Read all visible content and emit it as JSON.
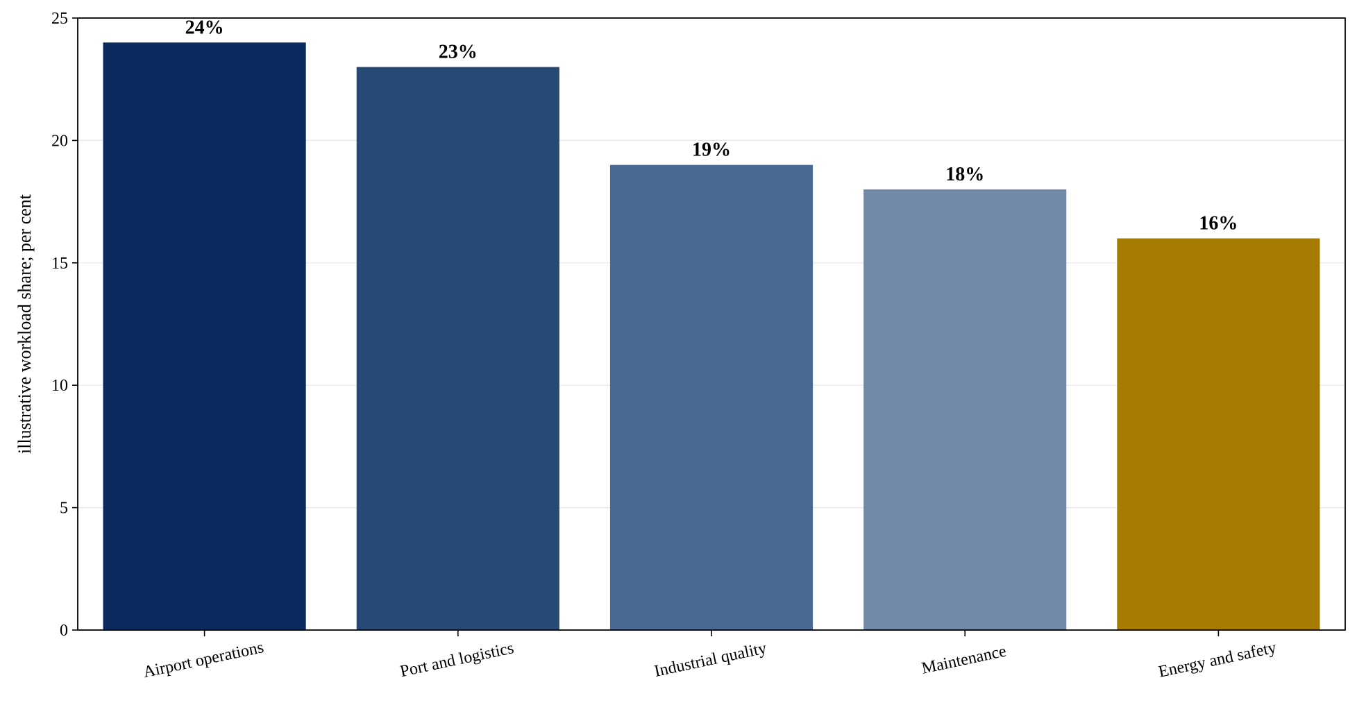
{
  "chart_data": {
    "type": "bar",
    "title": "",
    "xlabel": "",
    "ylabel": "illustrative workload share; per cent",
    "categories": [
      "Airport operations",
      "Port and logistics",
      "Industrial quality",
      "Maintenance",
      "Energy and safety"
    ],
    "values": [
      24,
      23,
      19,
      18,
      16
    ],
    "data_labels": [
      "24%",
      "23%",
      "19%",
      "18%",
      "16%"
    ],
    "bar_colors": [
      "#0b2a5e",
      "#264a73",
      "#4a6a93",
      "#7389a8",
      "#a67c00"
    ],
    "ylim": [
      0,
      25
    ],
    "yticks": [
      0,
      5,
      10,
      15,
      20,
      25
    ],
    "ytick_labels": [
      "0",
      "5",
      "10",
      "15",
      "20",
      "25"
    ],
    "grid": "horizontal",
    "grid_color": "#e6e6e6",
    "x_tick_rotation_deg": -12
  }
}
